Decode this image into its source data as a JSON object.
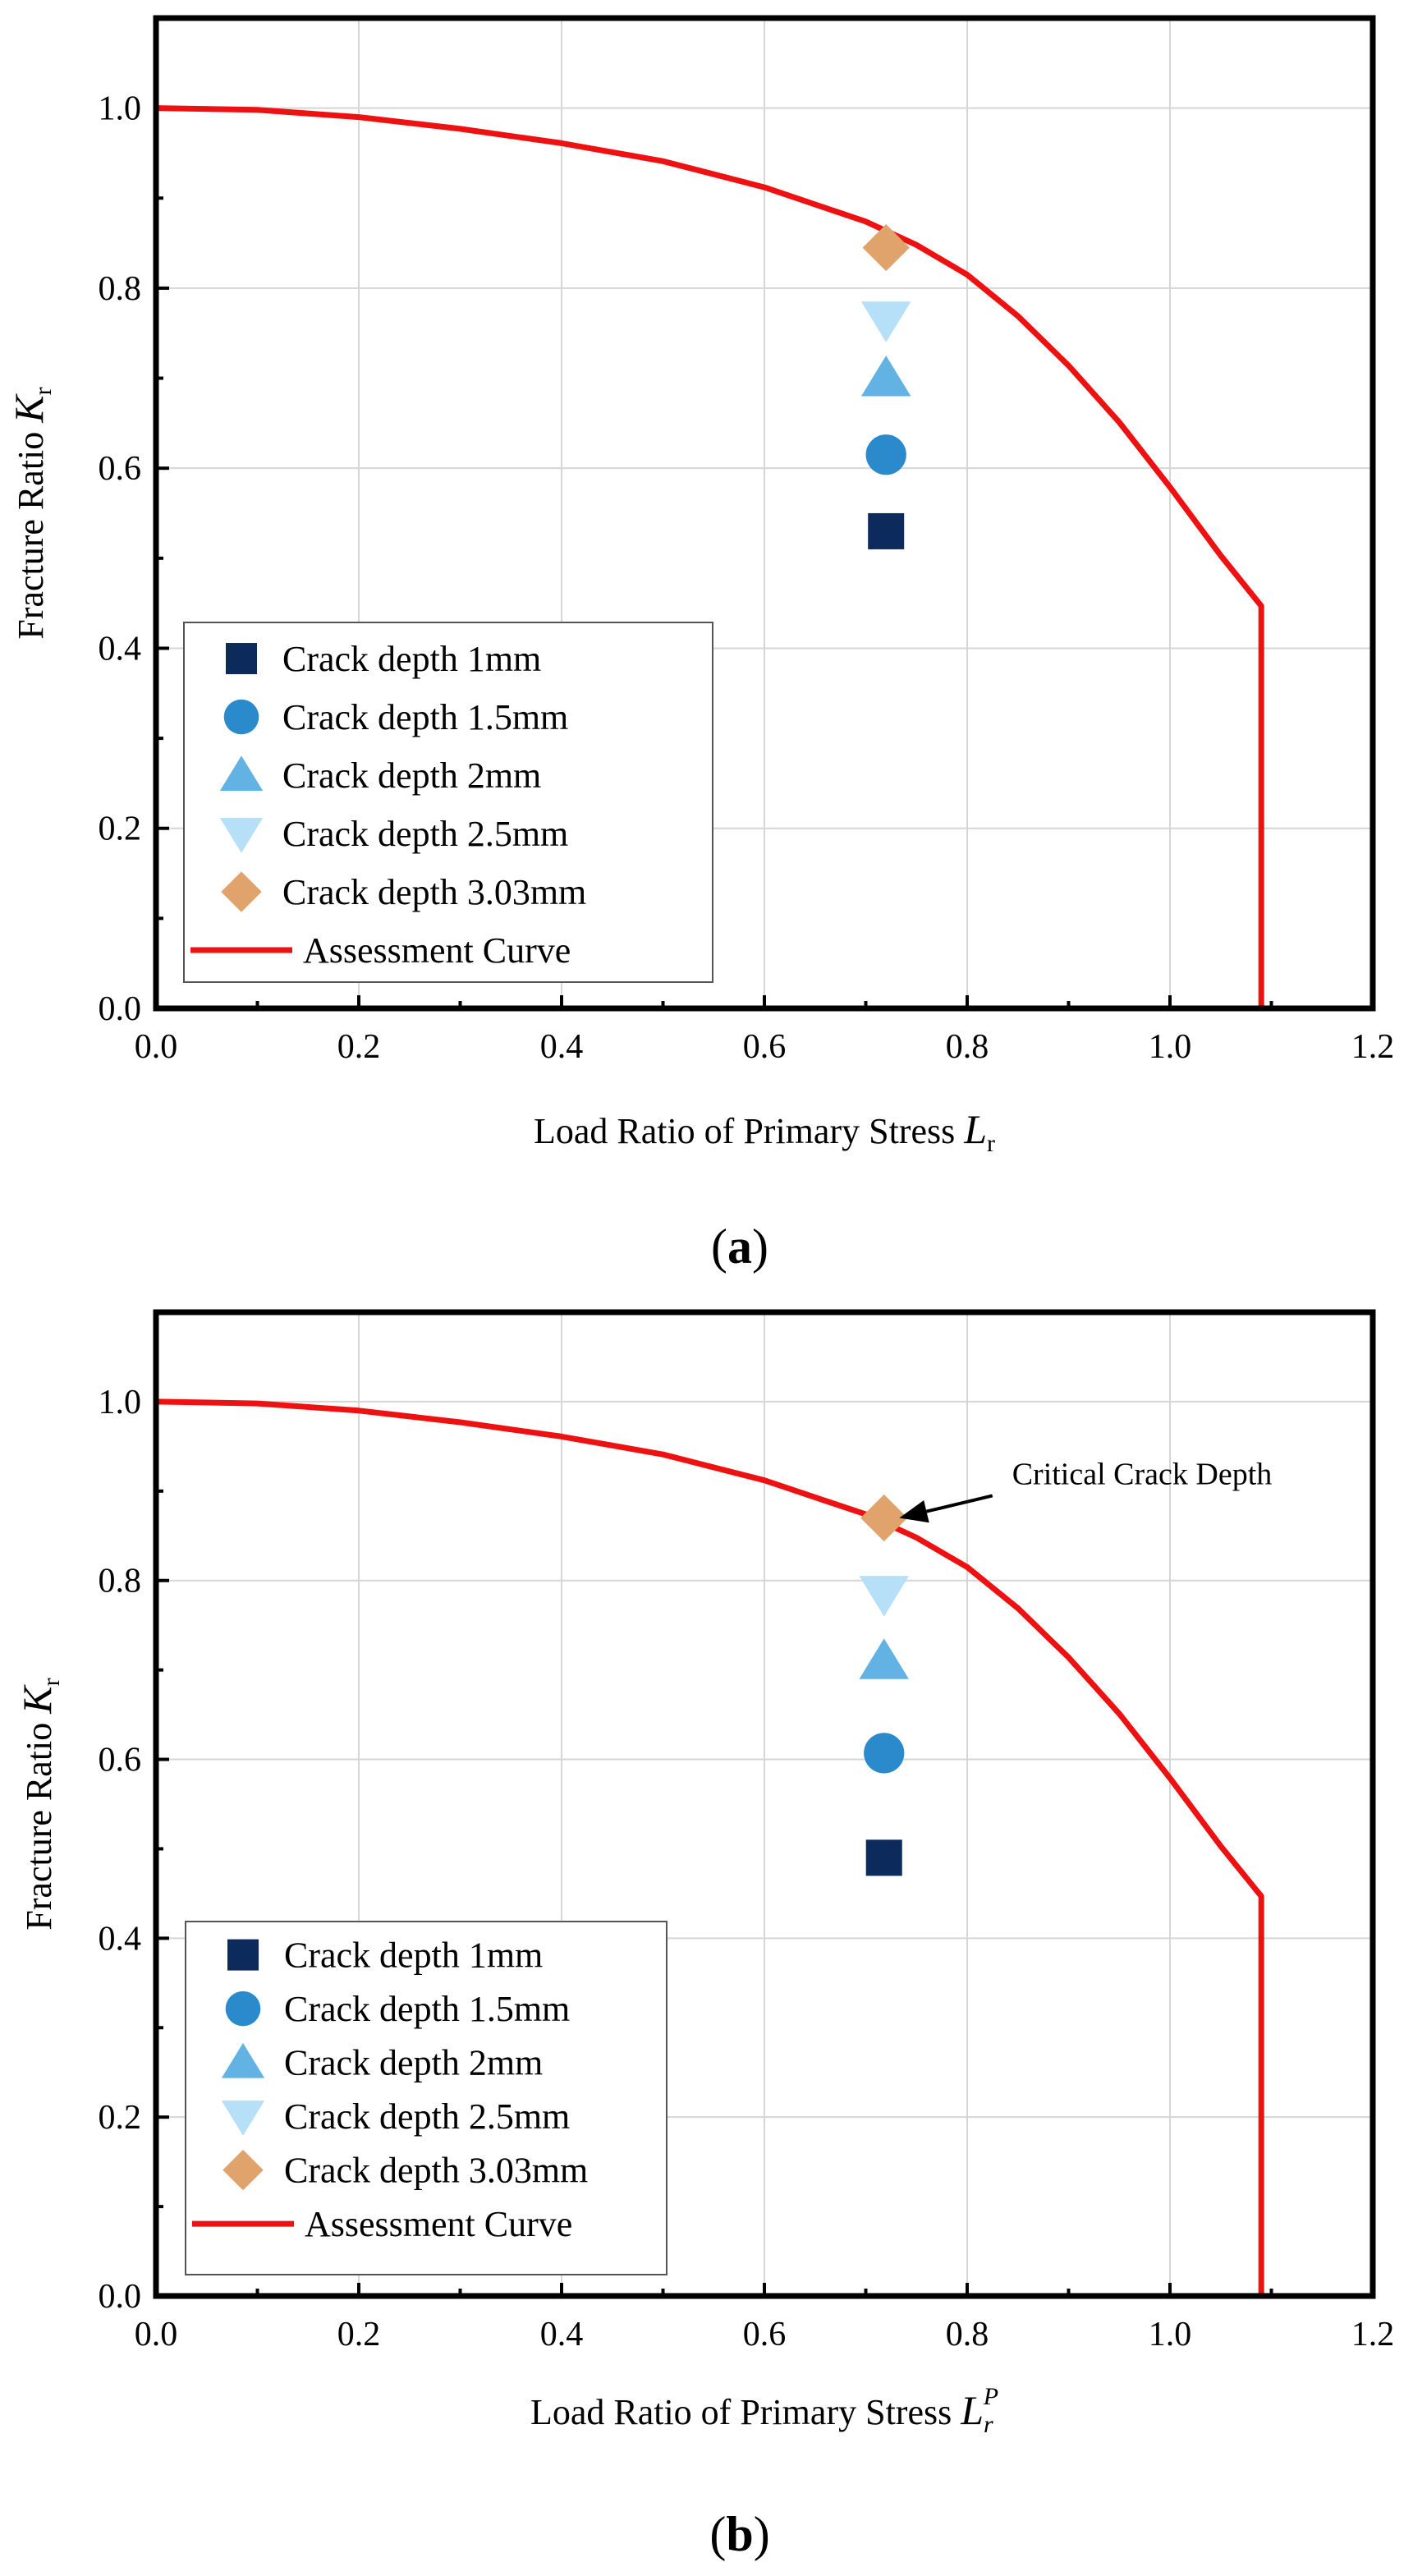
{
  "colors": {
    "curve": "#ee1111",
    "d1": "#0c2a5b",
    "d15": "#2a8acb",
    "d2": "#62b3e4",
    "d25": "#b5e0f7",
    "d303": "#e0a36b",
    "frame": "#000000",
    "grid": "#d6d6d6"
  },
  "figures": [
    {
      "caption": {
        "open": "(",
        "letter": "a",
        "close": ")"
      },
      "annotation": null,
      "chart_data": {
        "type": "scatter",
        "xlabel": {
          "text": "Load Ratio of Primary Stress ",
          "symbol": "L",
          "sub": "r",
          "sup": ""
        },
        "ylabel": {
          "text": "Fracture Ratio ",
          "symbol": "K",
          "sub": "r"
        },
        "xlim": [
          0,
          1.2
        ],
        "ylim": [
          0,
          1.1
        ],
        "xticks": [
          "0.0",
          "0.2",
          "0.4",
          "0.6",
          "0.8",
          "1.0",
          "1.2"
        ],
        "yticks": [
          "0.0",
          "0.2",
          "0.4",
          "0.6",
          "0.8",
          "1.0"
        ],
        "grid": true,
        "legend_position": "bottom-left",
        "series": [
          {
            "name": "Crack depth 1mm",
            "marker": "square",
            "color_key": "d1",
            "points": [
              [
                0.72,
                0.53
              ]
            ]
          },
          {
            "name": "Crack depth 1.5mm",
            "marker": "circle",
            "color_key": "d15",
            "points": [
              [
                0.72,
                0.615
              ]
            ]
          },
          {
            "name": "Crack depth 2mm",
            "marker": "triangle-up",
            "color_key": "d2",
            "points": [
              [
                0.72,
                0.7
              ]
            ]
          },
          {
            "name": "Crack depth 2.5mm",
            "marker": "triangle-down",
            "color_key": "d25",
            "points": [
              [
                0.72,
                0.765
              ]
            ]
          },
          {
            "name": "Crack depth 3.03mm",
            "marker": "diamond",
            "color_key": "d303",
            "points": [
              [
                0.72,
                0.845
              ]
            ]
          }
        ],
        "curve": {
          "name": "Assessment Curve",
          "points": [
            [
              0.0,
              1.0
            ],
            [
              0.1,
              0.998
            ],
            [
              0.2,
              0.99
            ],
            [
              0.3,
              0.977
            ],
            [
              0.4,
              0.961
            ],
            [
              0.5,
              0.941
            ],
            [
              0.6,
              0.912
            ],
            [
              0.7,
              0.874
            ],
            [
              0.75,
              0.848
            ],
            [
              0.8,
              0.815
            ],
            [
              0.85,
              0.769
            ],
            [
              0.9,
              0.714
            ],
            [
              0.95,
              0.651
            ],
            [
              1.0,
              0.579
            ],
            [
              1.05,
              0.503
            ],
            [
              1.09,
              0.447
            ],
            [
              1.09,
              0.0
            ]
          ]
        }
      }
    },
    {
      "caption": {
        "open": "(",
        "letter": "b",
        "close": ")"
      },
      "annotation": {
        "text": "Critical Crack Depth",
        "at": [
          0.725,
          0.87
        ],
        "text_at": [
          0.82,
          0.915
        ]
      },
      "chart_data": {
        "type": "scatter",
        "xlabel": {
          "text": "Load Ratio of Primary Stress ",
          "symbol": "L",
          "sub": "r",
          "sup": "P"
        },
        "ylabel": {
          "text": "Fracture Ratio ",
          "symbol": "K",
          "sub": "r"
        },
        "xlim": [
          0,
          1.2
        ],
        "ylim": [
          0,
          1.1
        ],
        "xticks": [
          "0.0",
          "0.2",
          "0.4",
          "0.6",
          "0.8",
          "1.0",
          "1.2"
        ],
        "yticks": [
          "0.0",
          "0.2",
          "0.4",
          "0.6",
          "0.8",
          "1.0"
        ],
        "grid": true,
        "legend_position": "bottom-left",
        "series": [
          {
            "name": "Crack depth 1mm",
            "marker": "square",
            "color_key": "d1",
            "points": [
              [
                0.718,
                0.49
              ]
            ]
          },
          {
            "name": "Crack depth 1.5mm",
            "marker": "circle",
            "color_key": "d15",
            "points": [
              [
                0.718,
                0.607
              ]
            ]
          },
          {
            "name": "Crack depth 2mm",
            "marker": "triangle-up",
            "color_key": "d2",
            "points": [
              [
                0.718,
                0.71
              ]
            ]
          },
          {
            "name": "Crack depth 2.5mm",
            "marker": "triangle-down",
            "color_key": "d25",
            "points": [
              [
                0.718,
                0.785
              ]
            ]
          },
          {
            "name": "Crack depth 3.03mm",
            "marker": "diamond",
            "color_key": "d303",
            "points": [
              [
                0.718,
                0.87
              ]
            ]
          }
        ],
        "curve": {
          "name": "Assessment Curve",
          "points": [
            [
              0.0,
              1.0
            ],
            [
              0.1,
              0.998
            ],
            [
              0.2,
              0.99
            ],
            [
              0.3,
              0.977
            ],
            [
              0.4,
              0.961
            ],
            [
              0.5,
              0.941
            ],
            [
              0.6,
              0.912
            ],
            [
              0.7,
              0.874
            ],
            [
              0.75,
              0.848
            ],
            [
              0.8,
              0.815
            ],
            [
              0.85,
              0.769
            ],
            [
              0.9,
              0.714
            ],
            [
              0.95,
              0.651
            ],
            [
              1.0,
              0.579
            ],
            [
              1.05,
              0.503
            ],
            [
              1.09,
              0.447
            ],
            [
              1.09,
              0.0
            ]
          ]
        }
      }
    }
  ]
}
